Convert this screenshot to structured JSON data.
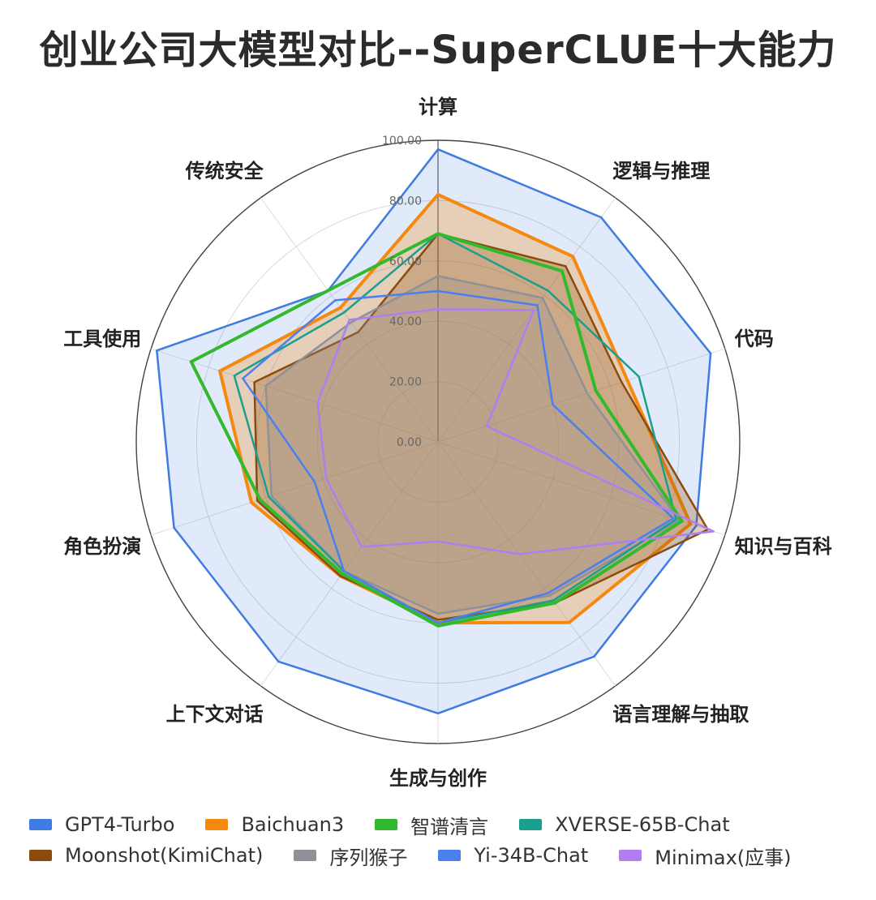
{
  "title": "创业公司大模型对比--SuperCLUE十大能力",
  "chart_data": {
    "type": "radar",
    "title": "创业公司大模型对比--SuperCLUE十大能力",
    "axes": [
      "计算",
      "逻辑与推理",
      "代码",
      "知识与百科",
      "语言理解与抽取",
      "生成与创作",
      "上下文对话",
      "角色扮演",
      "工具使用",
      "传统安全"
    ],
    "range": [
      0,
      100
    ],
    "ticks": [
      "0.00",
      "20.00",
      "40.00",
      "60.00",
      "80.00",
      "100.00"
    ],
    "series": [
      {
        "name": "GPT4-Turbo",
        "color": "#3f7be0",
        "values": [
          97,
          92,
          95,
          90,
          88,
          90,
          90,
          92,
          98,
          62
        ],
        "fill": true
      },
      {
        "name": "Baichuan3",
        "color": "#f5890f",
        "values": [
          82,
          76,
          66,
          88,
          74,
          60,
          55,
          65,
          76,
          55
        ],
        "fill": true
      },
      {
        "name": "智谱清言",
        "color": "#32b92e",
        "values": [
          69,
          70,
          55,
          85,
          66,
          61,
          54,
          62,
          86,
          62
        ],
        "fill": false
      },
      {
        "name": "XVERSE-65B-Chat",
        "color": "#1c9e8e",
        "values": [
          69,
          62,
          70,
          83,
          65,
          60,
          53,
          59,
          71,
          53
        ],
        "fill": false
      },
      {
        "name": "Moonshot(KimiChat)",
        "color": "#8b4b0c",
        "values": [
          69,
          72,
          64,
          94,
          66,
          59,
          55,
          63,
          64,
          45
        ],
        "fill": true
      },
      {
        "name": "序列猴子",
        "color": "#8e9197",
        "values": [
          55,
          59,
          52,
          84,
          63,
          57,
          53,
          58,
          60,
          49
        ],
        "fill": true
      },
      {
        "name": "Yi-34B-Chat",
        "color": "#4a7ff0",
        "values": [
          50,
          56,
          40,
          82,
          62,
          60,
          53,
          43,
          68,
          58
        ],
        "fill": false
      },
      {
        "name": "Minimax(应事)",
        "color": "#b07ef0",
        "values": [
          44,
          54,
          17,
          96,
          46,
          33,
          43,
          39,
          42,
          50
        ],
        "fill": false
      }
    ]
  }
}
